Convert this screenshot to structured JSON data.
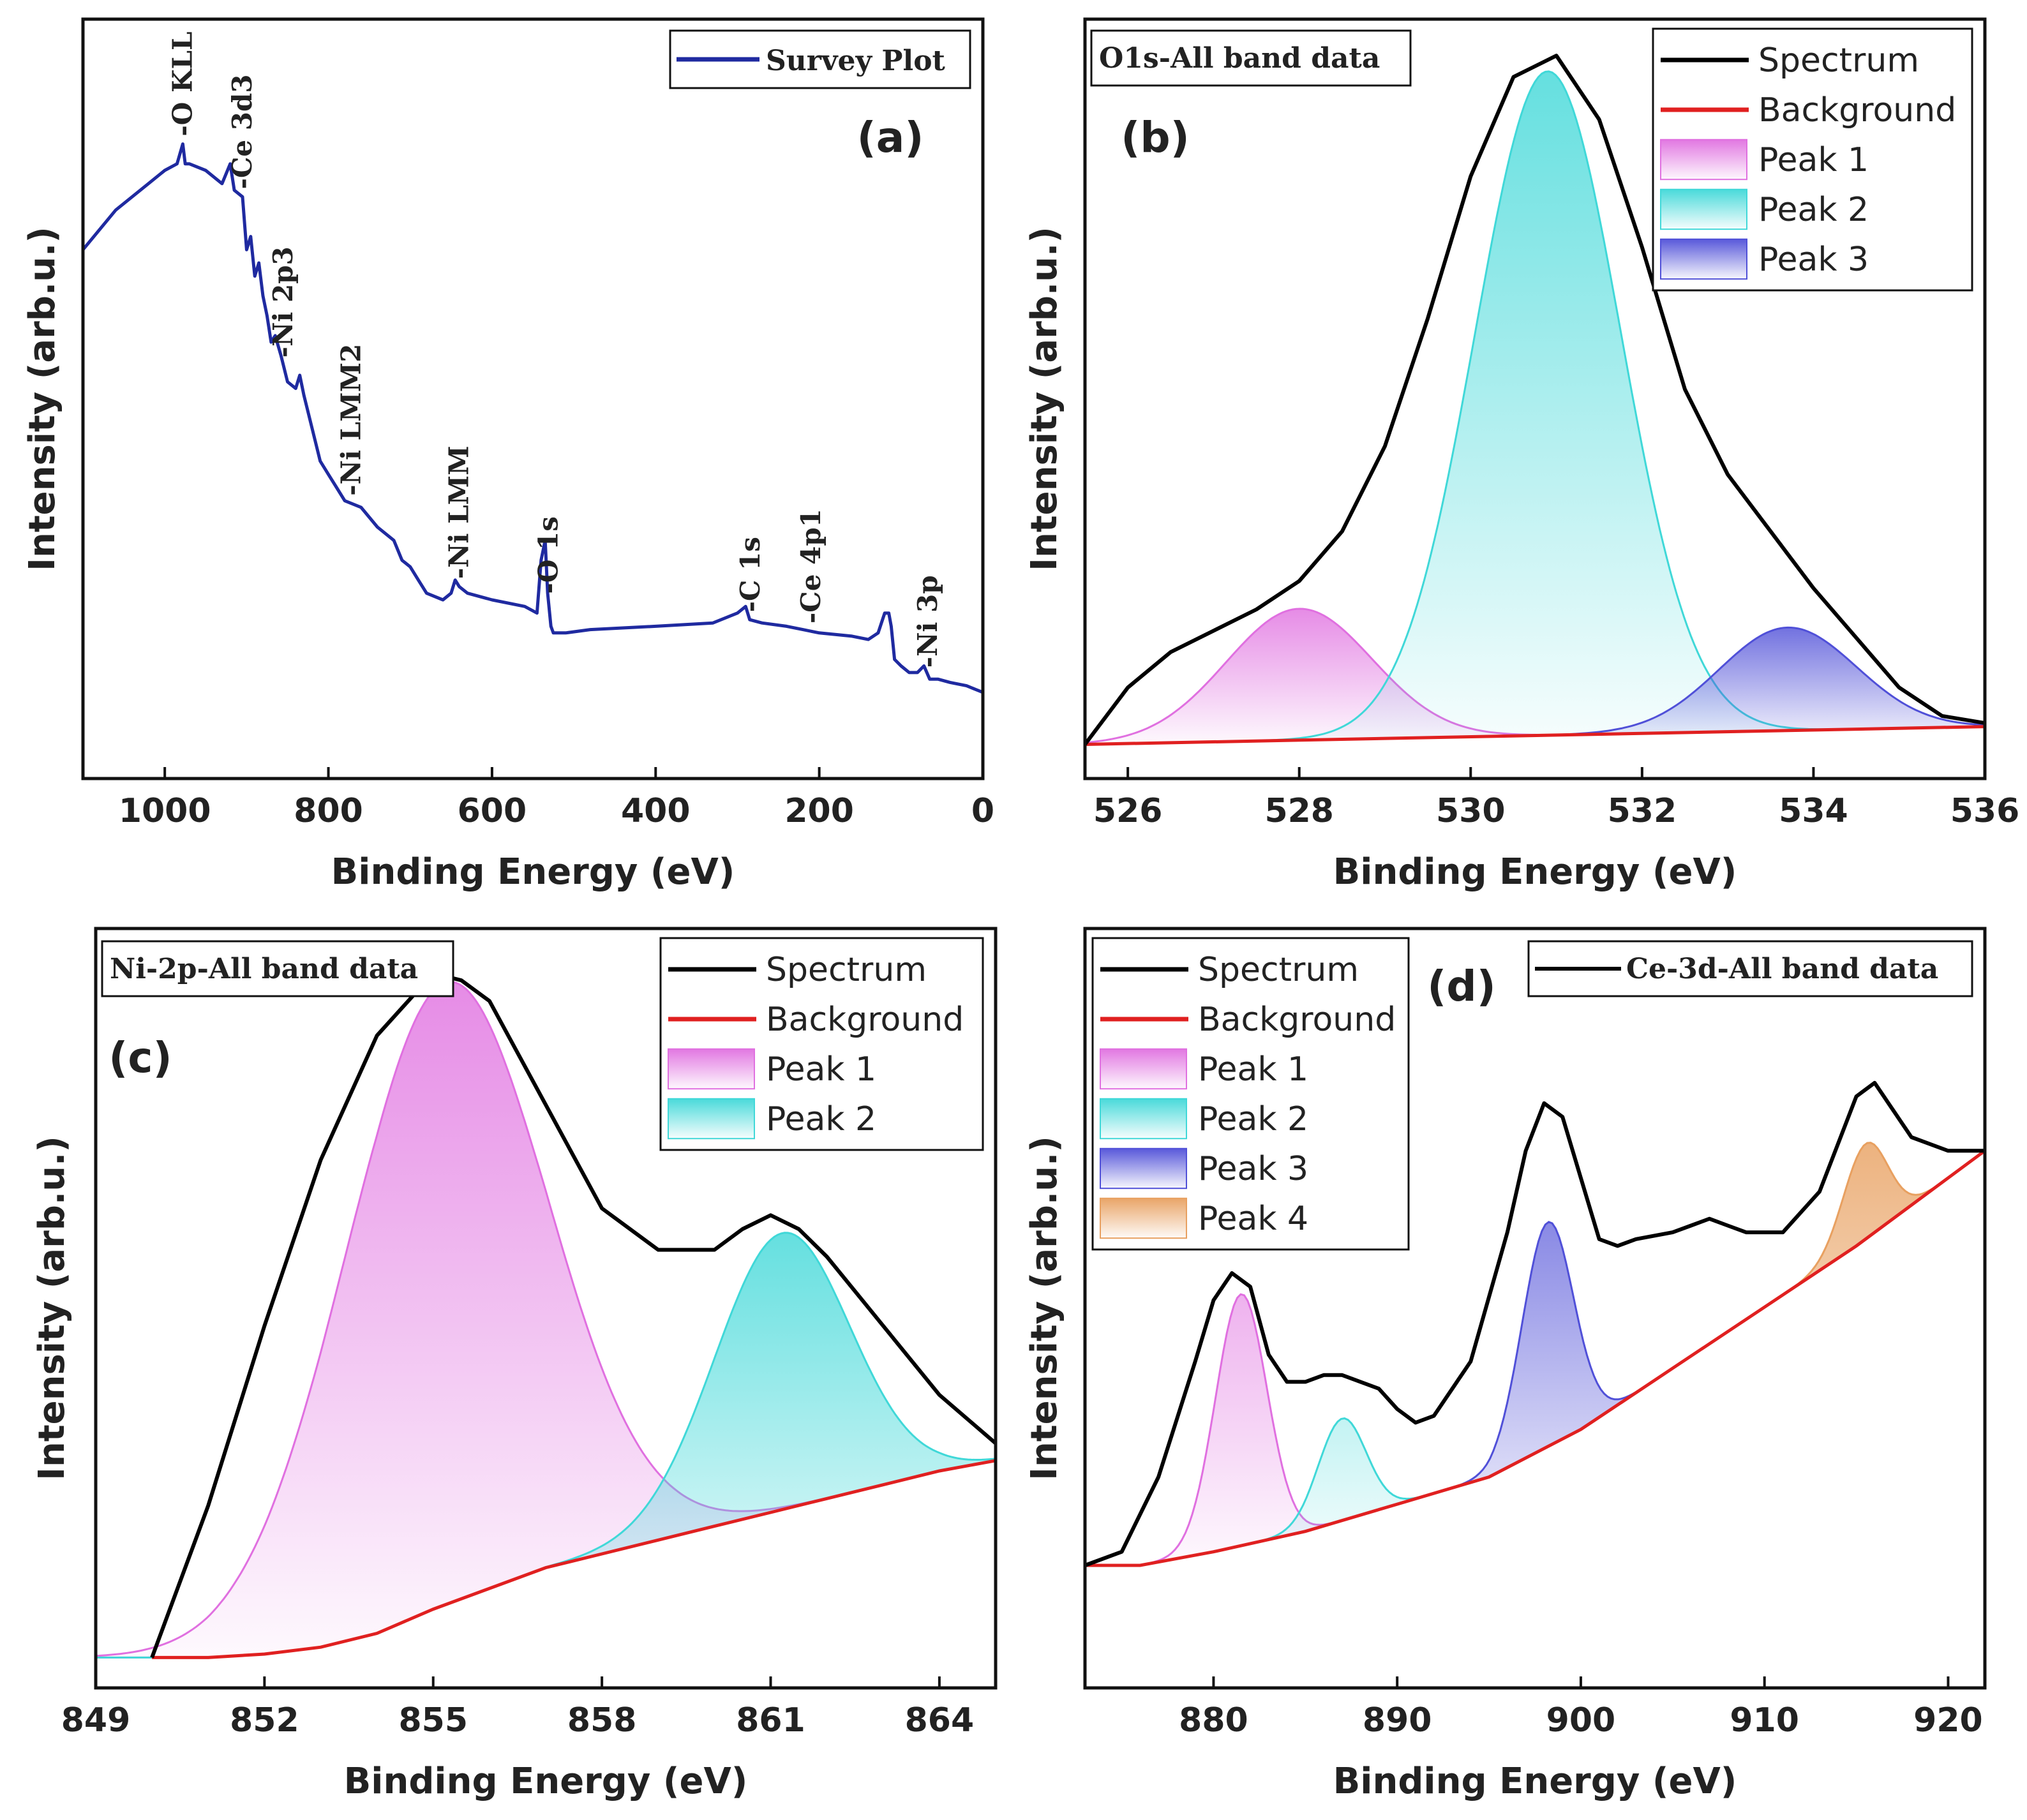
{
  "colors": {
    "survey": "#1f2aa0",
    "spectrum": "#000000",
    "background": "#e02020",
    "peak1": "#e070e0",
    "peak2": "#40d8d8",
    "peak3": "#5050d8",
    "peak4": "#e8a060"
  },
  "chart_data": [
    {
      "panel": "(a)",
      "type": "line",
      "tag": "Survey Plot",
      "xlabel": "Binding Energy (eV)",
      "ylabel": "Intensity (arb.u.)",
      "xlim": [
        1100,
        0
      ],
      "ylim": [
        0,
        100
      ],
      "xticks": [
        "1000",
        "800",
        "600",
        "400",
        "200",
        "0"
      ],
      "legend": [
        "Survey Plot"
      ],
      "series": [
        {
          "name": "Survey Plot",
          "x": [
            1100,
            1060,
            1020,
            1000,
            985,
            978,
            975,
            970,
            950,
            930,
            920,
            915,
            905,
            900,
            895,
            890,
            885,
            880,
            875,
            870,
            865,
            858,
            850,
            840,
            835,
            830,
            820,
            810,
            800,
            790,
            780,
            760,
            740,
            720,
            710,
            700,
            690,
            680,
            660,
            650,
            645,
            640,
            630,
            600,
            560,
            545,
            540,
            535,
            532,
            528,
            525,
            510,
            480,
            400,
            330,
            300,
            290,
            285,
            270,
            240,
            220,
            200,
            160,
            140,
            128,
            120,
            115,
            112,
            108,
            100,
            90,
            80,
            72,
            65,
            55,
            40,
            20,
            10,
            0
          ],
          "y": [
            72,
            78,
            82,
            84,
            85,
            88,
            85,
            85,
            84,
            82,
            85,
            81,
            80,
            72,
            74,
            68,
            70,
            65,
            62,
            58,
            59,
            56,
            52,
            51,
            53,
            50,
            45,
            40,
            38,
            36,
            34,
            33,
            30,
            28,
            25,
            24,
            22,
            20,
            19,
            20,
            22,
            21,
            20,
            19,
            18,
            17,
            25,
            28,
            20,
            15,
            14,
            14,
            14.5,
            15,
            15.5,
            17,
            18,
            16,
            15.5,
            15,
            14.5,
            14,
            13.5,
            13,
            14,
            17,
            17,
            15,
            10,
            9,
            8,
            8,
            9,
            7,
            7,
            6.5,
            6,
            5.5,
            5
          ]
        }
      ],
      "annotations": [
        {
          "label": "-O KLL",
          "x": 978
        },
        {
          "label": "-Ce 3d3",
          "x": 905
        },
        {
          "label": "-Ni 2p3",
          "x": 855
        },
        {
          "label": "-Ni LMM2",
          "x": 772
        },
        {
          "label": "-Ni LMM",
          "x": 640
        },
        {
          "label": "-O 1s",
          "x": 531
        },
        {
          "label": "-C 1s",
          "x": 284
        },
        {
          "label": "-Ce 4p1",
          "x": 210
        },
        {
          "label": "-Ni 3p",
          "x": 67
        }
      ]
    },
    {
      "panel": "(b)",
      "type": "area",
      "tag": "O1s-All band data",
      "xlabel": "Binding Energy (eV)",
      "ylabel": "Intensity (arb.u.)",
      "xlim": [
        525.5,
        536
      ],
      "ylim": [
        0,
        100
      ],
      "xticks": [
        "526",
        "528",
        "530",
        "532",
        "534",
        "536"
      ],
      "legend": [
        "Spectrum",
        "Background",
        "Peak 1",
        "Peak 2",
        "Peak 3"
      ],
      "background": {
        "x": [
          525.5,
          536
        ],
        "y": [
          0,
          2.5
        ]
      },
      "peaks": [
        {
          "name": "Peak 1",
          "center": 528.0,
          "height": 18.5,
          "sigma": 0.85
        },
        {
          "name": "Peak 2",
          "center": 530.9,
          "height": 93.5,
          "sigma": 0.85
        },
        {
          "name": "Peak 3",
          "center": 533.7,
          "height": 14.5,
          "sigma": 0.8
        }
      ],
      "spectrum": {
        "x": [
          525.5,
          526,
          526.5,
          527,
          527.5,
          528,
          528.5,
          529,
          529.5,
          530,
          530.5,
          531,
          531.5,
          532,
          532.5,
          533,
          533.5,
          534,
          534.5,
          535,
          535.5,
          536
        ],
        "y": [
          0,
          8,
          13,
          16,
          19,
          23,
          30,
          42,
          60,
          80,
          94,
          97,
          88,
          70,
          50,
          38,
          30,
          22,
          15,
          8,
          4,
          3
        ]
      }
    },
    {
      "panel": "(c)",
      "type": "area",
      "tag": "Ni-2p-All band data",
      "xlabel": "Binding Energy (eV)",
      "ylabel": "Intensity (arb.u.)",
      "xlim": [
        849,
        865
      ],
      "ylim": [
        0,
        100
      ],
      "xticks": [
        "849",
        "852",
        "855",
        "858",
        "861",
        "864"
      ],
      "legend": [
        "Spectrum",
        "Background",
        "Peak 1",
        "Peak 2"
      ],
      "background": {
        "x": [
          850,
          851,
          852,
          853,
          854,
          855,
          856,
          857,
          858,
          859,
          860,
          861,
          862,
          863,
          864,
          865
        ],
        "y": [
          0,
          0,
          0.5,
          1.5,
          3.5,
          7,
          10,
          13,
          15,
          17,
          19,
          21,
          23,
          25,
          27,
          28.5
        ]
      },
      "peaks": [
        {
          "name": "Peak 1",
          "center": 855.2,
          "height": 90,
          "sigma": 1.8
        },
        {
          "name": "Peak 2",
          "center": 861.2,
          "height": 40,
          "sigma": 1.2
        }
      ],
      "spectrum": {
        "x": [
          850,
          851,
          852,
          853,
          854,
          855,
          855.5,
          856,
          857,
          858,
          859,
          860,
          860.5,
          861,
          861.5,
          862,
          863,
          864,
          865
        ],
        "y": [
          0,
          22,
          48,
          72,
          90,
          99,
          98,
          95,
          80,
          65,
          59,
          59,
          62,
          64,
          62,
          58,
          48,
          38,
          31
        ]
      }
    },
    {
      "panel": "(d)",
      "type": "area",
      "tag": "Ce-3d-All band data",
      "xlabel": "Binding Energy (eV)",
      "ylabel": "Intensity (arb.u.)",
      "xlim": [
        873,
        922
      ],
      "ylim": [
        0,
        100
      ],
      "xticks": [
        "880",
        "890",
        "900",
        "910",
        "920"
      ],
      "legend": [
        "Spectrum",
        "Background",
        "Peak 1",
        "Peak 2",
        "Peak 3",
        "Peak 4"
      ],
      "background": {
        "x": [
          873,
          876,
          880,
          885,
          890,
          895,
          900,
          905,
          910,
          915,
          920,
          922
        ],
        "y": [
          13,
          13,
          15,
          18,
          22,
          26,
          33,
          42,
          51,
          60,
          70,
          74
        ]
      },
      "peaks": [
        {
          "name": "Peak 1",
          "center": 881.5,
          "height": 37,
          "sigma": 1.4
        },
        {
          "name": "Peak 2",
          "center": 887.0,
          "height": 15,
          "sigma": 1.3
        },
        {
          "name": "Peak 3",
          "center": 898.2,
          "height": 33,
          "sigma": 1.4
        },
        {
          "name": "Peak 4",
          "center": 915.5,
          "height": 14,
          "sigma": 1.2
        }
      ],
      "spectrum": {
        "x": [
          873,
          875,
          877,
          879,
          880,
          881,
          882,
          883,
          884,
          885,
          886,
          887,
          888,
          889,
          890,
          891,
          892,
          894,
          896,
          897,
          898,
          899,
          900,
          901,
          902,
          903,
          905,
          906,
          907,
          908,
          909,
          911,
          913,
          914,
          915,
          916,
          917,
          918,
          920,
          922
        ],
        "y": [
          13,
          15,
          26,
          43,
          52,
          56,
          54,
          44,
          40,
          40,
          41,
          41,
          40,
          39,
          36,
          34,
          35,
          43,
          62,
          74,
          81,
          79,
          70,
          61,
          60,
          61,
          62,
          63,
          64,
          63,
          62,
          62,
          68,
          75,
          82,
          84,
          80,
          76,
          74,
          74
        ]
      }
    }
  ]
}
